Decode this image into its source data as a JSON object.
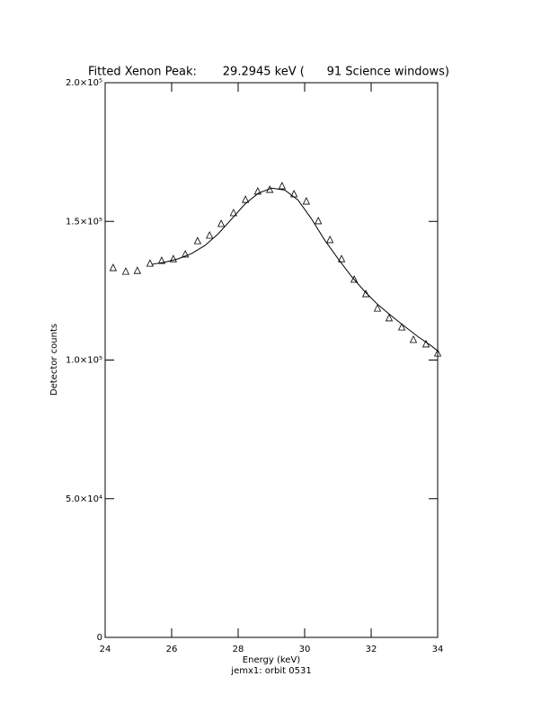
{
  "chart_data": {
    "type": "scatter",
    "title": "Fitted Xenon Peak:       29.2945 keV (      91 Science windows)",
    "x_label": "Energy (keV)",
    "y_label": "Detector counts",
    "footer": "jemx1: orbit 0531",
    "xlim": [
      24,
      34
    ],
    "xticks": [
      24,
      26,
      28,
      30,
      32,
      34
    ],
    "ylim": [
      0,
      200000
    ],
    "yticks": [
      0,
      {
        "value": 50000,
        "label": "5.0×10⁴"
      },
      {
        "value": 100000,
        "label": "1.0×10⁵"
      },
      {
        "value": 150000,
        "label": "1.5×10⁵"
      },
      {
        "value": 200000,
        "label": "2.0×10⁵"
      }
    ],
    "series": [
      {
        "kind": "points",
        "color": "#000000",
        "x": [
          24.24,
          24.62,
          24.97,
          25.35,
          25.7,
          26.05,
          26.41,
          26.78,
          27.14,
          27.49,
          27.86,
          28.22,
          28.59,
          28.95,
          29.32,
          29.68,
          30.05,
          30.41,
          30.76,
          31.11,
          31.49,
          31.84,
          32.19,
          32.54,
          32.92,
          33.27,
          33.65,
          34.0
        ],
        "values": [
          133200,
          131900,
          132200,
          134800,
          135800,
          136400,
          138100,
          142900,
          144900,
          149100,
          153000,
          157800,
          160800,
          161400,
          162700,
          159800,
          157200,
          150100,
          143300,
          136400,
          129000,
          123800,
          118600,
          115100,
          111800,
          107300,
          105700,
          102400
        ]
      },
      {
        "kind": "line",
        "color": "#000000",
        "x": [
          25.4,
          25.8,
          26.2,
          26.6,
          27.0,
          27.4,
          27.8,
          28.2,
          28.6,
          29.0,
          29.4,
          29.8,
          30.2,
          30.6,
          31.0,
          31.4,
          31.8,
          32.2,
          32.6,
          33.0,
          33.4,
          33.8,
          34.0
        ],
        "values": [
          134500,
          135300,
          136500,
          138400,
          141300,
          145500,
          150800,
          156200,
          160100,
          162000,
          161300,
          157700,
          151000,
          143300,
          136600,
          130300,
          124800,
          120000,
          116000,
          112200,
          108500,
          105200,
          103300
        ]
      }
    ]
  }
}
